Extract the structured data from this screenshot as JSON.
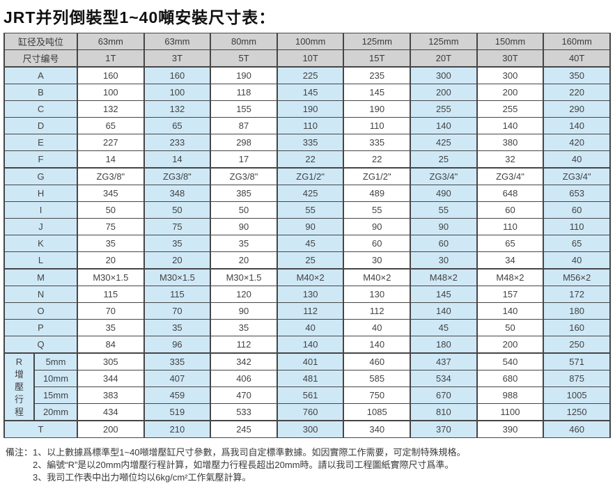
{
  "title": "JRT并列倒裝型1~40噸安裝尺寸表：",
  "table": {
    "header": {
      "row1_label": "缸径及吨位",
      "row2_label": "尺寸编号",
      "diameters": [
        "63mm",
        "63mm",
        "80mm",
        "100mm",
        "125mm",
        "125mm",
        "150mm",
        "160mm"
      ],
      "tonnages": [
        "1T",
        "3T",
        "5T",
        "10T",
        "15T",
        "20T",
        "30T",
        "40T"
      ]
    },
    "rows": [
      {
        "label": "A",
        "values": [
          160,
          160,
          190,
          225,
          235,
          300,
          300,
          350
        ]
      },
      {
        "label": "B",
        "values": [
          100,
          100,
          118,
          145,
          145,
          200,
          200,
          220
        ]
      },
      {
        "label": "C",
        "values": [
          132,
          132,
          155,
          190,
          190,
          255,
          255,
          290
        ]
      },
      {
        "label": "D",
        "values": [
          65,
          65,
          87,
          110,
          110,
          140,
          140,
          140
        ]
      },
      {
        "label": "E",
        "values": [
          227,
          233,
          298,
          335,
          335,
          425,
          380,
          420
        ]
      },
      {
        "label": "F",
        "values": [
          14,
          14,
          17,
          22,
          22,
          25,
          32,
          40
        ]
      },
      {
        "label": "G",
        "values": [
          "ZG3/8\"",
          "ZG3/8\"",
          "ZG3/8\"",
          "ZG1/2\"",
          "ZG1/2\"",
          "ZG3/4\"",
          "ZG3/4\"",
          "ZG3/4\""
        ]
      },
      {
        "label": "H",
        "values": [
          345,
          348,
          385,
          425,
          489,
          490,
          648,
          653
        ]
      },
      {
        "label": "I",
        "values": [
          50,
          50,
          50,
          55,
          55,
          55,
          60,
          60
        ]
      },
      {
        "label": "J",
        "values": [
          75,
          75,
          90,
          90,
          90,
          90,
          110,
          110
        ]
      },
      {
        "label": "K",
        "values": [
          35,
          35,
          35,
          45,
          60,
          60,
          65,
          65
        ]
      },
      {
        "label": "L",
        "values": [
          20,
          20,
          20,
          25,
          30,
          30,
          34,
          40
        ]
      },
      {
        "label": "M",
        "values": [
          "M30×1.5",
          "M30×1.5",
          "M30×1.5",
          "M40×2",
          "M40×2",
          "M48×2",
          "M48×2",
          "M56×2"
        ]
      },
      {
        "label": "N",
        "values": [
          115,
          115,
          120,
          130,
          130,
          145,
          157,
          172
        ]
      },
      {
        "label": "O",
        "values": [
          70,
          70,
          90,
          112,
          112,
          140,
          140,
          180
        ]
      },
      {
        "label": "P",
        "values": [
          35,
          35,
          35,
          40,
          40,
          45,
          50,
          160
        ]
      },
      {
        "label": "Q",
        "values": [
          84,
          96,
          112,
          140,
          140,
          180,
          200,
          250
        ]
      }
    ],
    "r_section": {
      "label": "R增壓行程",
      "sub_rows": [
        {
          "label": "5mm",
          "values": [
            305,
            335,
            342,
            401,
            460,
            437,
            540,
            571
          ]
        },
        {
          "label": "10mm",
          "values": [
            344,
            407,
            406,
            481,
            585,
            534,
            680,
            875
          ]
        },
        {
          "label": "15mm",
          "values": [
            383,
            459,
            470,
            561,
            750,
            670,
            988,
            1005
          ]
        },
        {
          "label": "20mm",
          "values": [
            434,
            519,
            533,
            760,
            1085,
            810,
            1100,
            1250
          ]
        }
      ]
    },
    "t_row": {
      "label": "T",
      "values": [
        200,
        210,
        245,
        300,
        340,
        370,
        390,
        460
      ]
    }
  },
  "notes": {
    "prefix": "備注：",
    "items": [
      "1、以上數據爲標準型1~40噸增壓缸尺寸參數，爲我司自定標準數據。如因實際工作需要，可定制特殊規格。",
      "2、編號“R”是以20mm内增壓行程計算，如增壓力行程長超出20mm時。請以我司工程圖紙實際尺寸爲準。",
      "3、我司工作表中出力噸位均以6kg/cm²工作氣壓計算。"
    ]
  },
  "colors": {
    "header_bg": "#d2d2d2",
    "stripe_blue": "#cfe8f6",
    "border": "#454545"
  }
}
